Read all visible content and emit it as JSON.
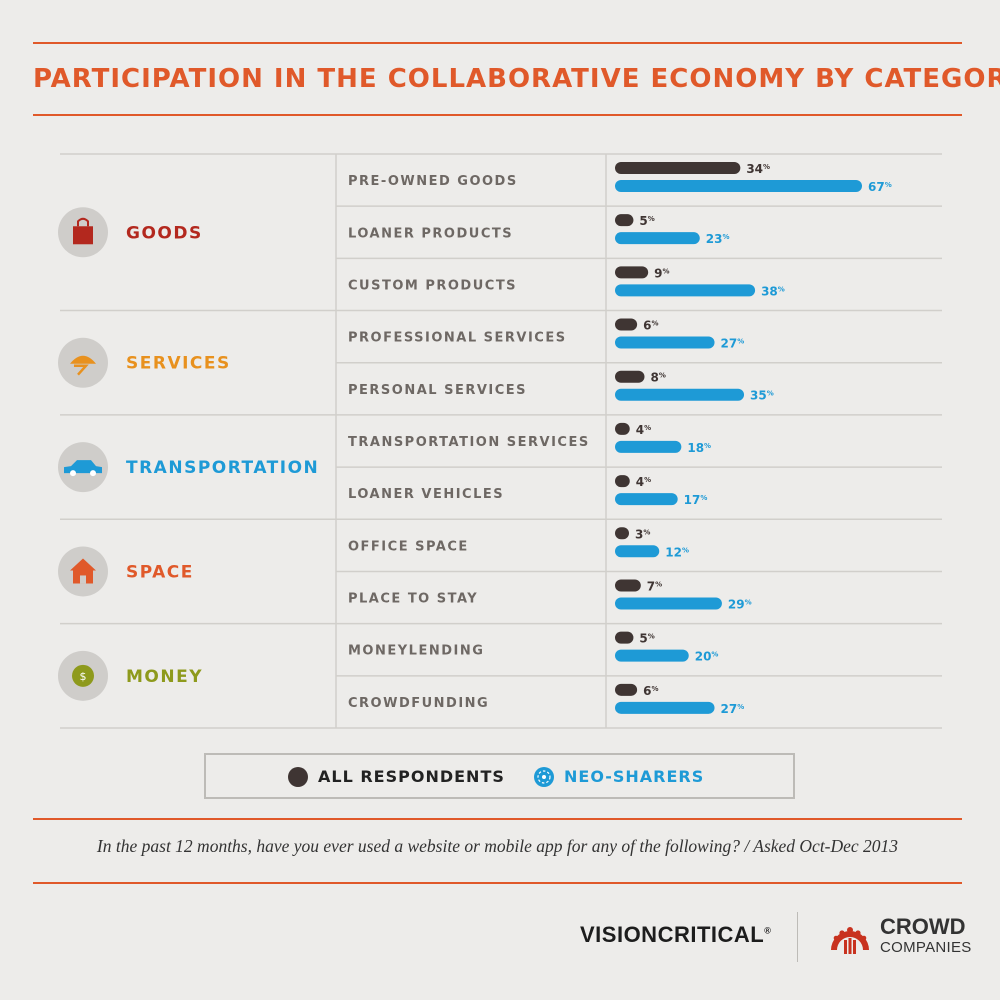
{
  "title": "PARTICIPATION IN THE COLLABORATIVE ECONOMY BY CATEGORY",
  "question": "In the past 12 months, have you ever used a website or mobile app for any of the following? / Asked Oct-Dec 2013",
  "legend": [
    {
      "label": "ALL RESPONDENTS",
      "color": "#3f3533",
      "icon": "filled-dot-icon"
    },
    {
      "label": "NEO-SHARERS",
      "color": "#1e9ad6",
      "icon": "neo-sharers-icon"
    }
  ],
  "logos": {
    "visioncritical": "VISIONCRITICAL",
    "crowd_line1": "CROWD",
    "crowd_line2": "COMPANIES"
  },
  "colors": {
    "accent": "#e0592a",
    "all_respondents": "#3f3533",
    "neo_sharers": "#1e9ad6"
  },
  "chart_data": {
    "type": "bar",
    "orientation": "horizontal",
    "groups": [
      {
        "name": "GOODS",
        "color": "#b3281e",
        "icon": "shopping-bag-icon",
        "categories": [
          "PRE-OWNED GOODS",
          "LOANER PRODUCTS",
          "CUSTOM PRODUCTS"
        ]
      },
      {
        "name": "SERVICES",
        "color": "#e8911e",
        "icon": "hard-hat-icon",
        "categories": [
          "PROFESSIONAL SERVICES",
          "PERSONAL SERVICES"
        ]
      },
      {
        "name": "TRANSPORTATION",
        "color": "#1e9ad6",
        "icon": "car-icon",
        "categories": [
          "TRANSPORTATION SERVICES",
          "LOANER VEHICLES"
        ]
      },
      {
        "name": "SPACE",
        "color": "#e0592a",
        "icon": "house-icon",
        "categories": [
          "OFFICE SPACE",
          "PLACE TO STAY"
        ]
      },
      {
        "name": "MONEY",
        "color": "#8e9a1c",
        "icon": "coin-icon",
        "coin_symbol": "$",
        "categories": [
          "MONEYLENDING",
          "CROWDFUNDING"
        ]
      }
    ],
    "categories": [
      "PRE-OWNED GOODS",
      "LOANER PRODUCTS",
      "CUSTOM PRODUCTS",
      "PROFESSIONAL SERVICES",
      "PERSONAL SERVICES",
      "TRANSPORTATION SERVICES",
      "LOANER VEHICLES",
      "OFFICE SPACE",
      "PLACE TO STAY",
      "MONEYLENDING",
      "CROWDFUNDING"
    ],
    "series": [
      {
        "name": "ALL RESPONDENTS",
        "values": [
          34,
          5,
          9,
          6,
          8,
          4,
          4,
          3,
          7,
          5,
          6
        ]
      },
      {
        "name": "NEO-SHARERS",
        "values": [
          67,
          23,
          38,
          27,
          35,
          18,
          17,
          12,
          29,
          20,
          27
        ]
      }
    ],
    "value_suffix": "%",
    "xlim": [
      0,
      67
    ]
  }
}
